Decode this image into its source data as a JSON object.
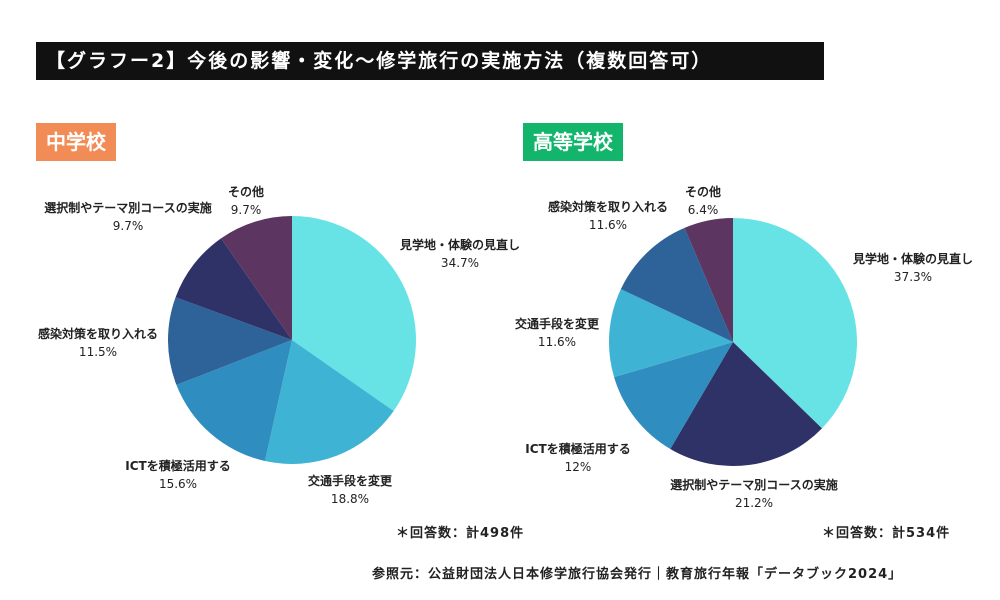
{
  "title": "【グラフー2】今後の影響・変化〜修学旅行の実施方法（複数回答可）",
  "colors": {
    "見学地・体験の見直し": "#67e3e6",
    "交通手段を変更": "#3fb3d4",
    "ICTを積極活用する": "#2f8ebf",
    "感染対策を取り入れる": "#2d6399",
    "選択制やテーマ別コースの実施": "#2e3266",
    "その他": "#5c3560"
  },
  "chart_data": [
    {
      "type": "pie",
      "title": "中学校",
      "title_color": "#f28c57",
      "slices": [
        {
          "label": "見学地・体験の見直し",
          "value": 34.7,
          "value_text": "34.7%"
        },
        {
          "label": "交通手段を変更",
          "value": 18.8,
          "value_text": "18.8%"
        },
        {
          "label": "ICTを積極活用する",
          "value": 15.6,
          "value_text": "15.6%"
        },
        {
          "label": "感染対策を取り入れる",
          "value": 11.5,
          "value_text": "11.5%"
        },
        {
          "label": "選択制やテーマ別コースの実施",
          "value": 9.7,
          "value_text": "9.7%"
        },
        {
          "label": "その他",
          "value": 9.7,
          "value_text": "9.7%"
        }
      ],
      "note": "＊回答数：計498件"
    },
    {
      "type": "pie",
      "title": "高等学校",
      "title_color": "#12b56b",
      "slices": [
        {
          "label": "見学地・体験の見直し",
          "value": 37.3,
          "value_text": "37.3%"
        },
        {
          "label": "選択制やテーマ別コースの実施",
          "value": 21.2,
          "value_text": "21.2%"
        },
        {
          "label": "ICTを積極活用する",
          "value": 12,
          "value_text": "12%"
        },
        {
          "label": "交通手段を変更",
          "value": 11.6,
          "value_text": "11.6%"
        },
        {
          "label": "感染対策を取り入れる",
          "value": 11.6,
          "value_text": "11.6%"
        },
        {
          "label": "その他",
          "value": 6.4,
          "value_text": "6.4%"
        }
      ],
      "note": "＊回答数：計534件"
    }
  ],
  "source": "参照元：公益財団法人日本修学旅行協会発行｜教育旅行年報「データブック2024」"
}
